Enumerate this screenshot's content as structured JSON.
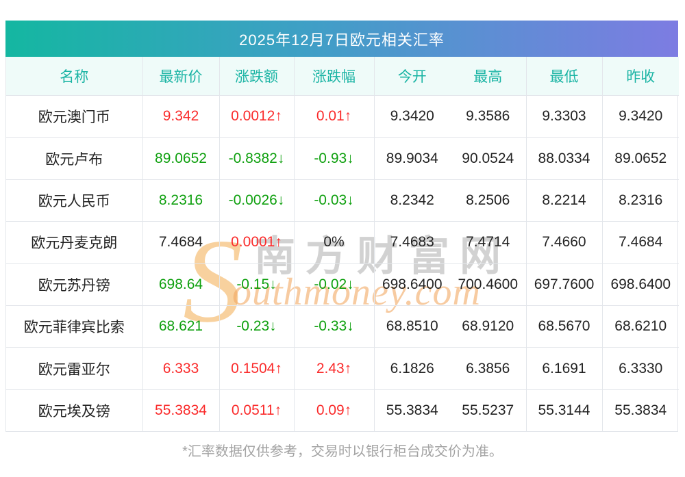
{
  "chart_data": {
    "type": "table",
    "title": "2025年12月7日欧元相关汇率",
    "columns": [
      "名称",
      "最新价",
      "涨跌额",
      "涨跌幅",
      "今开",
      "最高",
      "最低",
      "昨收"
    ],
    "rows": [
      {
        "name": "欧元澳门币",
        "latest": "9.342",
        "latest_color": "red",
        "change": "0.0012↑",
        "change_color": "red",
        "pct": "0.01↑",
        "pct_color": "red",
        "open": "9.3420",
        "high": "9.3586",
        "low": "9.3303",
        "prev_close": "9.3420"
      },
      {
        "name": "欧元卢布",
        "latest": "89.0652",
        "latest_color": "green",
        "change": "-0.8382↓",
        "change_color": "green",
        "pct": "-0.93↓",
        "pct_color": "green",
        "open": "89.9034",
        "high": "90.0524",
        "low": "88.0334",
        "prev_close": "89.0652"
      },
      {
        "name": "欧元人民币",
        "latest": "8.2316",
        "latest_color": "green",
        "change": "-0.0026↓",
        "change_color": "green",
        "pct": "-0.03↓",
        "pct_color": "green",
        "open": "8.2342",
        "high": "8.2506",
        "low": "8.2214",
        "prev_close": "8.2316"
      },
      {
        "name": "欧元丹麦克朗",
        "latest": "7.4684",
        "latest_color": "black",
        "change": "0.0001↑",
        "change_color": "red",
        "pct": "0%",
        "pct_color": "black",
        "open": "7.4683",
        "high": "7.4714",
        "low": "7.4660",
        "prev_close": "7.4684"
      },
      {
        "name": "欧元苏丹镑",
        "latest": "698.64",
        "latest_color": "green",
        "change": "-0.15↓",
        "change_color": "green",
        "pct": "-0.02↓",
        "pct_color": "green",
        "open": "698.6400",
        "high": "700.4600",
        "low": "697.7600",
        "prev_close": "698.6400"
      },
      {
        "name": "欧元菲律宾比索",
        "latest": "68.621",
        "latest_color": "green",
        "change": "-0.23↓",
        "change_color": "green",
        "pct": "-0.33↓",
        "pct_color": "green",
        "open": "68.8510",
        "high": "68.9120",
        "low": "68.5670",
        "prev_close": "68.6210"
      },
      {
        "name": "欧元雷亚尔",
        "latest": "6.333",
        "latest_color": "red",
        "change": "0.1504↑",
        "change_color": "red",
        "pct": "2.43↑",
        "pct_color": "red",
        "open": "6.1826",
        "high": "6.3856",
        "low": "6.1691",
        "prev_close": "6.3330"
      },
      {
        "name": "欧元埃及镑",
        "latest": "55.3834",
        "latest_color": "red",
        "change": "0.0511↑",
        "change_color": "red",
        "pct": "0.09↑",
        "pct_color": "red",
        "open": "55.3834",
        "high": "55.5237",
        "low": "55.3144",
        "prev_close": "55.3834"
      }
    ],
    "footnote": "*汇率数据仅供参考，交易时以银行柜台成交价为准。"
  },
  "watermark": {
    "s_initial": "S",
    "chinese": "南方财富网",
    "domain_rest": "outhmoney.com"
  },
  "colors": {
    "red": "#fa2b2b",
    "green": "#0fa00f",
    "black": "#232323",
    "title_gradient_start": "#14b7a1",
    "title_gradient_end": "#7d7ce2",
    "header_text": "#1ab4a4",
    "header_bg": "#effbf9",
    "border": "#e3e6eb",
    "footnote_text": "#a3a3a3"
  }
}
